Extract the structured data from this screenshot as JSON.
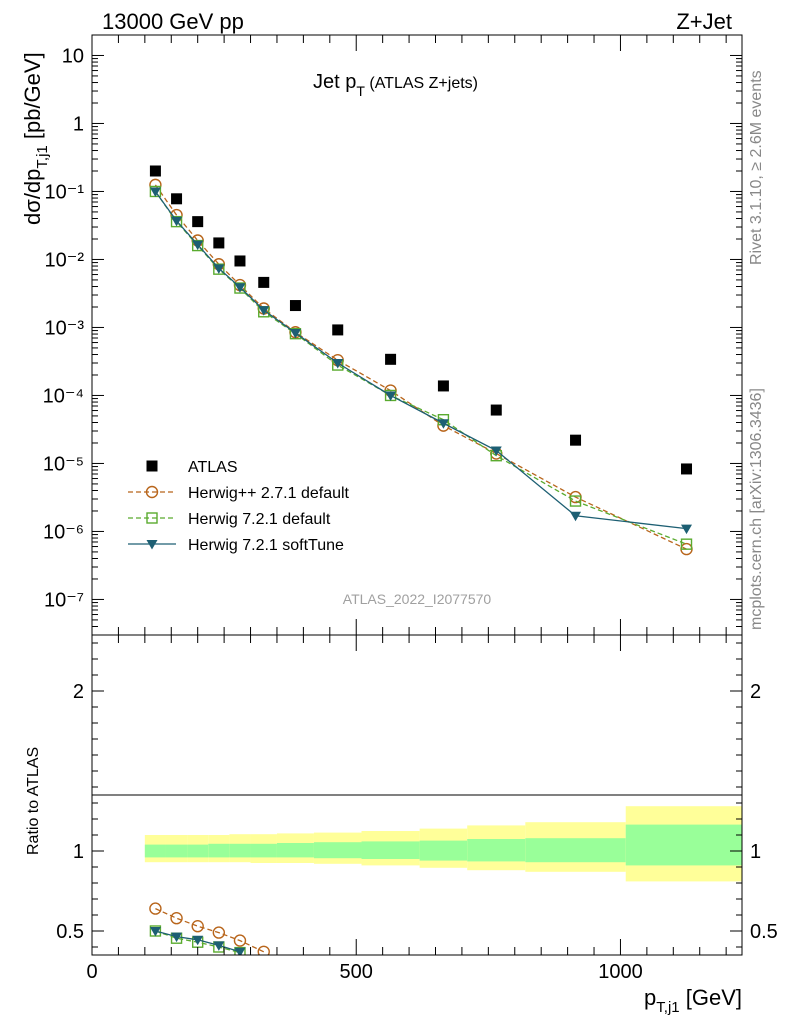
{
  "header": {
    "left": "13000 GeV pp",
    "right": "Z+Jet"
  },
  "side_labels": {
    "rivet": "Rivet 3.1.10, ≥ 2.6M events",
    "mcplots": "mcplots.cern.ch [arXiv:1306.3436]"
  },
  "colors": {
    "atlas": "#000000",
    "herwigpp": "#b8651b",
    "herwig721": "#5aab2f",
    "softtune": "#1d5f73",
    "band_inner": "#99ff99",
    "band_outer": "#ffff99"
  },
  "chart_data": [
    {
      "type": "scatter",
      "title": "Jet p",
      "title_sub": "T",
      "title_suffix": " (ATLAS Z+jets)",
      "ylabel": "dσ/dp",
      "ylabel_sub": "T,j1",
      "ylabel_suffix": " [pb/GeV]",
      "watermark": "ATLAS_2022_I2077570",
      "yscale": "log",
      "ylim": [
        3e-08,
        20
      ],
      "xlim": [
        0,
        1230
      ],
      "ytick_labels": [
        "10⁻⁷",
        "10⁻⁶",
        "10⁻⁵",
        "10⁻⁴",
        "10⁻³",
        "10⁻²",
        "10⁻¹",
        "1",
        "10"
      ],
      "legend": [
        "ATLAS",
        "Herwig++ 2.7.1 default",
        "Herwig 7.2.1 default",
        "Herwig 7.2.1 softTune"
      ],
      "legend_position": "bottom-left",
      "x": [
        120,
        160,
        200,
        240,
        280,
        325,
        385,
        465,
        565,
        665,
        765,
        915,
        1125
      ],
      "series": [
        {
          "name": "ATLAS",
          "values": [
            0.2,
            0.078,
            0.036,
            0.0175,
            0.0095,
            0.0046,
            0.0021,
            0.00092,
            0.00034,
            0.000138,
            6.1e-05,
            2.2e-05,
            8.3e-06
          ]
        },
        {
          "name": "Herwig++ 2.7.1 default",
          "values": [
            0.125,
            0.045,
            0.019,
            0.0085,
            0.0042,
            0.0019,
            0.00085,
            0.00033,
            0.000118,
            3.6e-05,
            1.4e-05,
            3.2e-06,
            5.5e-07
          ]
        },
        {
          "name": "Herwig 7.2.1 default",
          "values": [
            0.1,
            0.036,
            0.016,
            0.0072,
            0.0038,
            0.0017,
            0.00081,
            0.00028,
            0.0001,
            4.4e-05,
            1.3e-05,
            2.8e-06,
            6.5e-07
          ]
        },
        {
          "name": "Herwig 7.2.1 softTune",
          "values": [
            0.1,
            0.037,
            0.0165,
            0.0074,
            0.0039,
            0.0018,
            0.00083,
            0.0003,
            0.0001,
            3.9e-05,
            1.55e-05,
            1.7e-06,
            1.1e-06
          ]
        }
      ]
    },
    {
      "type": "line",
      "ylabel": "Ratio to ATLAS",
      "xlabel": "p",
      "xlabel_sub": "T,j1",
      "xlabel_suffix": " [GeV]",
      "ylim": [
        0.35,
        2.35
      ],
      "xlim": [
        0,
        1230
      ],
      "xtick_labels": [
        "0",
        "500",
        "1000"
      ],
      "xtick_values": [
        0,
        500,
        1000
      ],
      "ytick_labels": [
        "0.5",
        "1",
        "2"
      ],
      "ytick_values": [
        0.5,
        1,
        2
      ],
      "bands": {
        "edges": [
          100,
          140,
          180,
          220,
          260,
          300,
          350,
          420,
          510,
          620,
          710,
          820,
          1010,
          1240
        ],
        "inner_lo": [
          0.96,
          0.96,
          0.96,
          0.96,
          0.96,
          0.96,
          0.96,
          0.955,
          0.95,
          0.94,
          0.935,
          0.93,
          0.91
        ],
        "inner_hi": [
          1.04,
          1.04,
          1.04,
          1.045,
          1.045,
          1.045,
          1.05,
          1.055,
          1.06,
          1.065,
          1.075,
          1.08,
          1.165
        ],
        "outer_lo": [
          0.93,
          0.93,
          0.93,
          0.93,
          0.93,
          0.925,
          0.925,
          0.92,
          0.91,
          0.895,
          0.88,
          0.87,
          0.81
        ],
        "outer_hi": [
          1.1,
          1.1,
          1.1,
          1.1,
          1.105,
          1.105,
          1.11,
          1.115,
          1.125,
          1.14,
          1.16,
          1.18,
          1.28
        ]
      },
      "series": [
        {
          "name": "Herwig++ 2.7.1 default",
          "x": [
            120,
            160,
            200,
            240,
            280,
            325
          ],
          "values": [
            0.64,
            0.58,
            0.53,
            0.49,
            0.44,
            0.37
          ]
        },
        {
          "name": "Herwig 7.2.1 default",
          "x": [
            120,
            160,
            200,
            240,
            280
          ],
          "values": [
            0.5,
            0.455,
            0.43,
            0.4,
            0.365
          ]
        },
        {
          "name": "Herwig 7.2.1 softTune",
          "x": [
            120,
            160,
            200,
            240,
            280
          ],
          "values": [
            0.5,
            0.465,
            0.445,
            0.41,
            0.37
          ]
        }
      ]
    }
  ]
}
